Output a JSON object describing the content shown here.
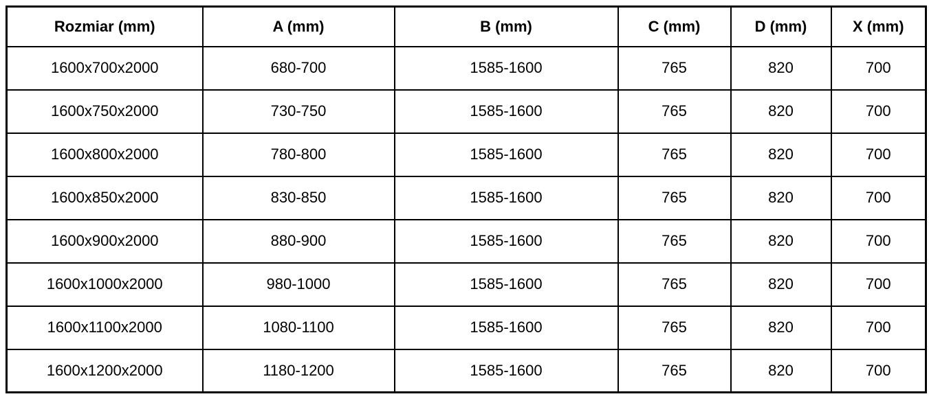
{
  "colors": {
    "border": "#000000",
    "text": "#000000",
    "background": "#ffffff"
  },
  "table": {
    "columns": [
      "Rozmiar (mm)",
      "A (mm)",
      "B (mm)",
      "C (mm)",
      "D (mm)",
      "X (mm)"
    ],
    "rows": [
      [
        "1600x700x2000",
        "680-700",
        "1585-1600",
        "765",
        "820",
        "700"
      ],
      [
        "1600x750x2000",
        "730-750",
        "1585-1600",
        "765",
        "820",
        "700"
      ],
      [
        "1600x800x2000",
        "780-800",
        "1585-1600",
        "765",
        "820",
        "700"
      ],
      [
        "1600x850x2000",
        "830-850",
        "1585-1600",
        "765",
        "820",
        "700"
      ],
      [
        "1600x900x2000",
        "880-900",
        "1585-1600",
        "765",
        "820",
        "700"
      ],
      [
        "1600x1000x2000",
        "980-1000",
        "1585-1600",
        "765",
        "820",
        "700"
      ],
      [
        "1600x1100x2000",
        "1080-1100",
        "1585-1600",
        "765",
        "820",
        "700"
      ],
      [
        "1600x1200x2000",
        "1180-1200",
        "1585-1600",
        "765",
        "820",
        "700"
      ]
    ]
  }
}
